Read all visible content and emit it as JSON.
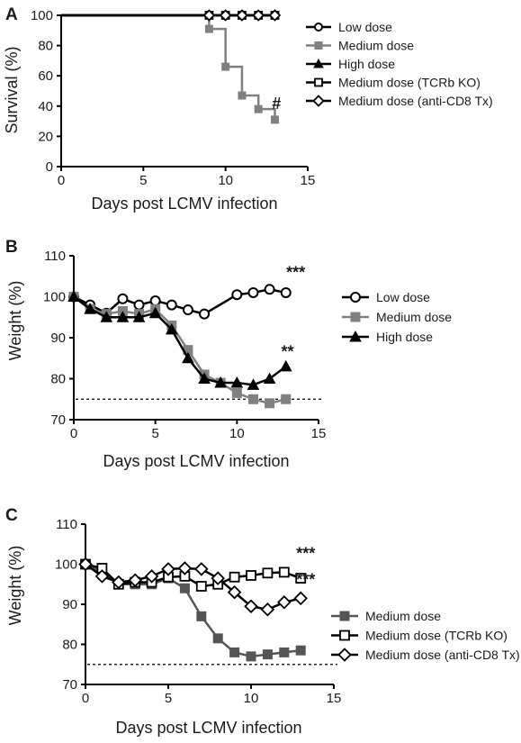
{
  "chart_data": [
    {
      "panel": "A",
      "type": "line",
      "step": true,
      "xlabel": "Days post LCMV infection",
      "ylabel": "Survival (%)",
      "xlim": [
        0,
        15
      ],
      "ylim": [
        0,
        100
      ],
      "xticks": [
        0,
        5,
        10,
        15
      ],
      "yticks": [
        0,
        20,
        40,
        60,
        80,
        100
      ],
      "legend_position": "right",
      "annotations": [
        {
          "text": "#",
          "x": 13.1,
          "y": 38
        }
      ],
      "series": [
        {
          "name": "Low dose",
          "marker": "circle-open",
          "color": "#000000",
          "x": [
            0,
            13
          ],
          "y": [
            100,
            100
          ],
          "markers": [
            [
              9,
              100
            ],
            [
              13,
              100
            ]
          ]
        },
        {
          "name": "Medium dose",
          "marker": "square-filled",
          "color": "#808080",
          "x": [
            0,
            9,
            10,
            11,
            12,
            13
          ],
          "y": [
            100,
            91,
            66,
            47,
            38,
            31
          ],
          "markers": [
            [
              9,
              91
            ],
            [
              10,
              66
            ],
            [
              11,
              47
            ],
            [
              12,
              38
            ],
            [
              13,
              31
            ]
          ]
        },
        {
          "name": "High dose",
          "marker": "triangle-filled",
          "color": "#000000",
          "x": [
            0,
            13
          ],
          "y": [
            100,
            100
          ],
          "markers": []
        },
        {
          "name": "Medium dose (TCRb KO)",
          "marker": "square-open",
          "color": "#000000",
          "x": [
            0,
            13
          ],
          "y": [
            100,
            100
          ],
          "markers": [
            [
              9,
              100
            ],
            [
              10,
              100
            ],
            [
              11,
              100
            ],
            [
              12,
              100
            ],
            [
              13,
              100
            ]
          ]
        },
        {
          "name": "Medium dose (anti-CD8 Tx)",
          "marker": "diamond-open",
          "color": "#000000",
          "x": [
            0,
            13
          ],
          "y": [
            100,
            100
          ],
          "markers": [
            [
              9,
              100
            ],
            [
              10,
              100
            ],
            [
              11,
              100
            ],
            [
              12,
              100
            ],
            [
              13,
              100
            ]
          ]
        }
      ]
    },
    {
      "panel": "B",
      "type": "line",
      "xlabel": "Days post LCMV infection",
      "ylabel": "Weight (%)",
      "xlim": [
        0,
        15
      ],
      "ylim": [
        70,
        110
      ],
      "xticks": [
        0,
        5,
        10,
        15
      ],
      "yticks": [
        70,
        80,
        90,
        100,
        110
      ],
      "reference_line": 75,
      "legend_position": "right",
      "annotations": [
        {
          "text": "***",
          "x": 13.6,
          "y": 104.6
        },
        {
          "text": "**",
          "x": 13.1,
          "y": 85.3
        }
      ],
      "series": [
        {
          "name": "Low dose",
          "marker": "circle-open",
          "color": "#000000",
          "x": [
            0,
            1,
            2,
            3,
            4,
            5,
            6,
            7,
            8,
            10,
            11,
            12,
            13
          ],
          "y": [
            100,
            98,
            96,
            99.5,
            98,
            99,
            98,
            96.8,
            95.8,
            100.5,
            101,
            101.8,
            101
          ]
        },
        {
          "name": "Medium dose",
          "marker": "square-filled",
          "color": "#808080",
          "x": [
            0,
            1,
            2,
            3,
            4,
            5,
            6,
            7,
            8,
            9,
            10,
            11,
            12,
            13
          ],
          "y": [
            100,
            97,
            95.8,
            96.5,
            95.8,
            97,
            93,
            87,
            81,
            79,
            76.5,
            75,
            74,
            75
          ]
        },
        {
          "name": "High dose",
          "marker": "triangle-filled",
          "color": "#000000",
          "x": [
            0,
            1,
            2,
            3,
            4,
            5,
            6,
            7,
            8,
            9,
            10,
            11,
            12,
            13
          ],
          "y": [
            100,
            97,
            95,
            95,
            95,
            96,
            92,
            85,
            80,
            79,
            79,
            78.5,
            80,
            83
          ]
        }
      ]
    },
    {
      "panel": "C",
      "type": "line",
      "xlabel": "Days post LCMV infection",
      "ylabel": "Weight (%)",
      "xlim": [
        0,
        15
      ],
      "ylim": [
        70,
        110
      ],
      "xticks": [
        0,
        5,
        10,
        15
      ],
      "yticks": [
        70,
        80,
        90,
        100,
        110
      ],
      "reference_line": 75,
      "legend_position": "right",
      "annotations": [
        {
          "text": "***",
          "x": 13.3,
          "y": 101.3
        },
        {
          "text": "***",
          "x": 13.3,
          "y": 94.8
        }
      ],
      "series": [
        {
          "name": "Medium dose",
          "marker": "square-filled",
          "color": "#555555",
          "x": [
            0,
            1,
            2,
            3,
            4,
            5,
            6,
            7,
            8,
            9,
            10,
            11,
            12,
            13
          ],
          "y": [
            100,
            98,
            95,
            95,
            95,
            96.5,
            94,
            87,
            81.5,
            78,
            77,
            77.5,
            78,
            78.5
          ]
        },
        {
          "name": "Medium dose (TCRb KO)",
          "marker": "square-open",
          "color": "#000000",
          "x": [
            0,
            1,
            2,
            3,
            4,
            5,
            6,
            7,
            8,
            9,
            10,
            11,
            12,
            13
          ],
          "y": [
            100,
            99,
            95,
            95.5,
            95.5,
            96.8,
            97,
            94.5,
            95,
            96.8,
            97.2,
            97.8,
            98,
            96.5
          ]
        },
        {
          "name": "Medium dose (anti-CD8 Tx)",
          "marker": "diamond-open",
          "color": "#000000",
          "x": [
            0,
            1,
            2,
            3,
            4,
            5,
            6,
            7,
            8,
            9,
            10,
            11,
            12,
            13
          ],
          "y": [
            100,
            97,
            95.5,
            96,
            97,
            98.8,
            99,
            98.8,
            96.5,
            93,
            89.5,
            88.7,
            90.5,
            91.5
          ]
        }
      ]
    }
  ],
  "panel_letters": [
    "A",
    "B",
    "C"
  ]
}
